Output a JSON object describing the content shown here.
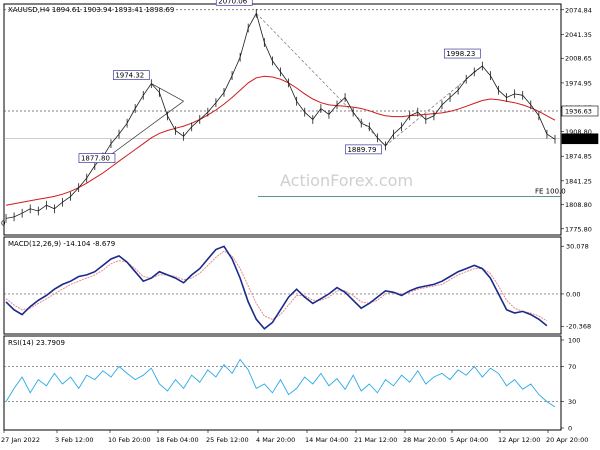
{
  "chart_data": {
    "type": "candlestick",
    "symbol_line": "XAUUSD,H4  1894.61 1903.94 1893.41 1898.69",
    "watermark": "ActionForex.com",
    "price_panel": {
      "y_ticks": [
        "2074.84",
        "2041.35",
        "2008.65",
        "1974.95",
        "1941.25",
        "1908.80",
        "1874.85",
        "1841.25",
        "1808.80",
        "1775.80"
      ],
      "ylim": [
        1770,
        2080
      ],
      "current_price": "1898.69",
      "level_1936": "1936.63",
      "level_1898": "1898.69",
      "fe_label": "FE 100.0",
      "annotations": [
        "2070.06",
        "1974.32",
        "1877.80",
        "1889.79",
        "1998.23"
      ],
      "left_cut_label": "0",
      "close_path": [
        1790,
        1792,
        1797,
        1803,
        1800,
        1808,
        1803,
        1812,
        1820,
        1832,
        1845,
        1862,
        1874,
        1892,
        1905,
        1920,
        1940,
        1958,
        1974,
        1962,
        1930,
        1910,
        1902,
        1915,
        1925,
        1935,
        1948,
        1962,
        1985,
        2010,
        2050,
        2070,
        2030,
        2005,
        1990,
        1975,
        1950,
        1935,
        1925,
        1940,
        1932,
        1945,
        1955,
        1935,
        1920,
        1915,
        1900,
        1889,
        1905,
        1915,
        1930,
        1935,
        1925,
        1930,
        1945,
        1955,
        1965,
        1980,
        1990,
        1998,
        1985,
        1965,
        1955,
        1960,
        1958,
        1945,
        1930,
        1905,
        1898
      ],
      "ma_path": [
        1808,
        1810,
        1812,
        1814,
        1816,
        1818,
        1820,
        1823,
        1827,
        1832,
        1838,
        1845,
        1852,
        1860,
        1868,
        1876,
        1884,
        1892,
        1900,
        1906,
        1910,
        1913,
        1916,
        1920,
        1925,
        1931,
        1938,
        1946,
        1955,
        1965,
        1975,
        1982,
        1984,
        1983,
        1980,
        1975,
        1968,
        1960,
        1953,
        1948,
        1945,
        1944,
        1943,
        1942,
        1940,
        1937,
        1933,
        1930,
        1929,
        1929,
        1930,
        1931,
        1932,
        1933,
        1934,
        1936,
        1939,
        1943,
        1947,
        1951,
        1953,
        1952,
        1950,
        1948,
        1945,
        1941,
        1936,
        1930,
        1924
      ]
    },
    "macd_panel": {
      "label": "MACD(12,26,9) -14.104 -8.679",
      "y_ticks": [
        "30.078",
        "0.00",
        "-20.368"
      ],
      "ylim": [
        -24,
        34
      ],
      "macd_path": [
        -5,
        -10,
        -13,
        -8,
        -4,
        -1,
        3,
        6,
        8,
        11,
        12,
        14,
        18,
        22,
        24,
        20,
        14,
        8,
        10,
        14,
        12,
        10,
        7,
        12,
        16,
        22,
        28,
        30,
        22,
        10,
        -5,
        -16,
        -22,
        -18,
        -10,
        -2,
        3,
        -2,
        -6,
        -3,
        0,
        4,
        1,
        -4,
        -9,
        -6,
        -2,
        2,
        1,
        -1,
        2,
        4,
        5,
        6,
        8,
        11,
        14,
        16,
        18,
        16,
        10,
        0,
        -10,
        -12,
        -11,
        -13,
        -16,
        -20
      ],
      "signal_path": [
        -3,
        -7,
        -10,
        -9,
        -6,
        -3,
        0,
        3,
        6,
        8,
        10,
        12,
        15,
        19,
        21,
        20,
        16,
        11,
        10,
        12,
        12,
        11,
        9,
        10,
        13,
        18,
        23,
        27,
        24,
        16,
        5,
        -6,
        -14,
        -16,
        -13,
        -7,
        -1,
        -1,
        -4,
        -4,
        -2,
        2,
        2,
        -1,
        -5,
        -6,
        -4,
        0,
        1,
        0,
        1,
        3,
        4,
        5,
        6,
        9,
        12,
        14,
        16,
        16,
        13,
        5,
        -4,
        -9,
        -11,
        -12,
        -14,
        -17
      ]
    },
    "rsi_panel": {
      "label": "RSI(14) 23.7909",
      "y_ticks": [
        "100",
        "70",
        "30",
        "0"
      ],
      "ylim": [
        0,
        100
      ],
      "rsi_path": [
        30,
        45,
        58,
        40,
        55,
        48,
        62,
        50,
        58,
        45,
        60,
        55,
        65,
        58,
        70,
        62,
        55,
        60,
        68,
        50,
        42,
        55,
        45,
        60,
        52,
        66,
        58,
        72,
        62,
        78,
        66,
        45,
        50,
        40,
        55,
        38,
        45,
        58,
        50,
        62,
        48,
        56,
        44,
        60,
        42,
        50,
        40,
        55,
        48,
        60,
        52,
        65,
        50,
        58,
        62,
        55,
        66,
        60,
        70,
        58,
        68,
        62,
        48,
        55,
        44,
        50,
        38,
        30,
        24
      ],
      "levels": [
        "70",
        "30"
      ]
    },
    "x_ticks": [
      "27 Jan 2022",
      "3 Feb 12:00",
      "10 Feb 20:00",
      "18 Feb 04:00",
      "25 Feb 12:00",
      "4 Mar 20:00",
      "14 Mar 04:00",
      "21 Mar 12:00",
      "28 Mar 20:00",
      "5 Apr 04:00",
      "12 Apr 12:00",
      "20 Apr 20:00"
    ]
  },
  "colors": {
    "close_line": "#1a1a1a",
    "ma": "#d11a1a",
    "macd": "#1a2a8a",
    "signal": "#e58c8c",
    "rsi": "#2aa8e8",
    "price_tag_bg": "#000000",
    "annotation_border": "#3a3aa0"
  }
}
